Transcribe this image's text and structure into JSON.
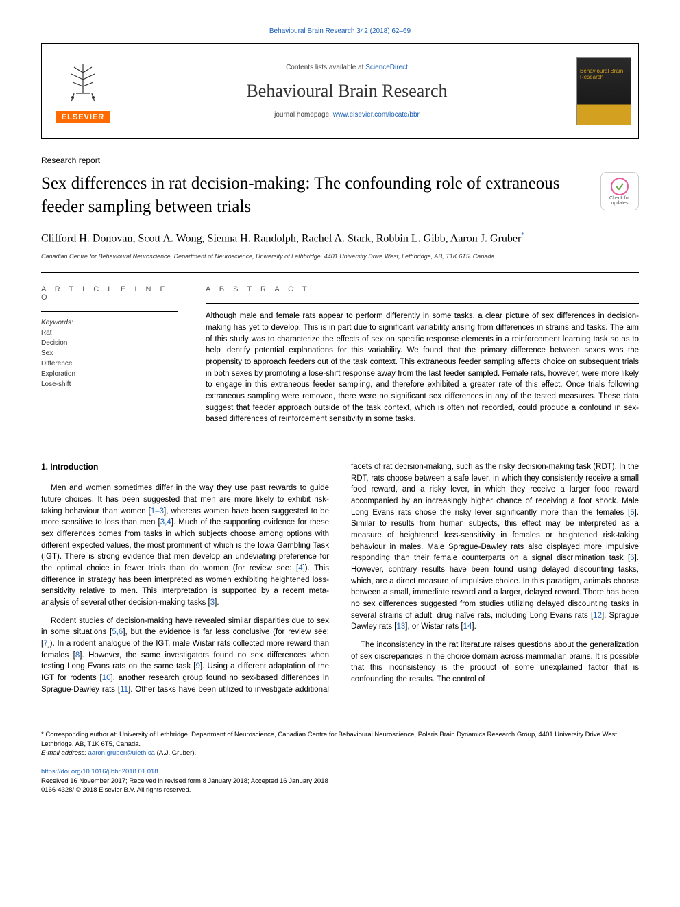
{
  "top_citation": "Behavioural Brain Research 342 (2018) 62–69",
  "header": {
    "contents_prefix": "Contents lists available at ",
    "contents_link": "ScienceDirect",
    "journal_name": "Behavioural Brain Research",
    "homepage_prefix": "journal homepage: ",
    "homepage_link": "www.elsevier.com/locate/bbr",
    "publisher_label": "ELSEVIER",
    "cover_text": "Behavioural Brain Research"
  },
  "article_type": "Research report",
  "title": "Sex differences in rat decision-making: The confounding role of extraneous feeder sampling between trials",
  "updates_badge": "Check for updates",
  "authors": "Clifford H. Donovan, Scott A. Wong, Sienna H. Randolph, Rachel A. Stark, Robbin L. Gibb, Aaron J. Gruber",
  "corresponding_mark": "*",
  "affiliation": "Canadian Centre for Behavioural Neuroscience, Department of Neuroscience, University of Lethbridge, 4401 University Drive West, Lethbridge, AB, T1K 6T5, Canada",
  "info_heading": "A R T I C L E  I N F O",
  "abstract_heading": "A B S T R A C T",
  "keywords_label": "Keywords:",
  "keywords": [
    "Rat",
    "Decision",
    "Sex",
    "Difference",
    "Exploration",
    "Lose-shift"
  ],
  "abstract": "Although male and female rats appear to perform differently in some tasks, a clear picture of sex differences in decision-making has yet to develop. This is in part due to significant variability arising from differences in strains and tasks. The aim of this study was to characterize the effects of sex on specific response elements in a reinforcement learning task so as to help identify potential explanations for this variability. We found that the primary difference between sexes was the propensity to approach feeders out of the task context. This extraneous feeder sampling affects choice on subsequent trials in both sexes by promoting a lose-shift response away from the last feeder sampled. Female rats, however, were more likely to engage in this extraneous feeder sampling, and therefore exhibited a greater rate of this effect. Once trials following extraneous sampling were removed, there were no significant sex differences in any of the tested measures. These data suggest that feeder approach outside of the task context, which is often not recorded, could produce a confound in sex-based differences of reinforcement sensitivity in some tasks.",
  "intro_heading": "1. Introduction",
  "intro_paragraphs": [
    "Men and women sometimes differ in the way they use past rewards to guide future choices. It has been suggested that men are more likely to exhibit risk-taking behaviour than women [1–3], whereas women have been suggested to be more sensitive to loss than men [3,4]. Much of the supporting evidence for these sex differences comes from tasks in which subjects choose among options with different expected values, the most prominent of which is the Iowa Gambling Task (IGT). There is strong evidence that men develop an undeviating preference for the optimal choice in fewer trials than do women (for review see: [4]). This difference in strategy has been interpreted as women exhibiting heightened loss-sensitivity relative to men. This interpretation is supported by a recent meta-analysis of several other decision-making tasks [3].",
    "Rodent studies of decision-making have revealed similar disparities due to sex in some situations [5,6], but the evidence is far less conclusive (for review see: [7]). In a rodent analogue of the IGT, male Wistar rats collected more reward than females [8]. However, the same investigators found no sex differences when testing Long Evans rats on the same task [9]. Using a different adaptation of the IGT for rodents [10], another research group found no sex-based differences in Sprague-Dawley rats [11]. Other tasks have been utilized to investigate additional facets of rat decision-making, such as the risky decision-making task (RDT). In the RDT, rats choose between a safe lever, in which they consistently receive a small food reward, and a risky lever, in which they receive a larger food reward accompanied by an increasingly higher chance of receiving a foot shock. Male Long Evans rats chose the risky lever significantly more than the females [5]. Similar to results from human subjects, this effect may be interpreted as a measure of heightened loss-sensitivity in females or heightened risk-taking behaviour in males. Male Sprague-Dawley rats also displayed more impulsive responding than their female counterparts on a signal discrimination task [6]. However, contrary results have been found using delayed discounting tasks, which, are a direct measure of impulsive choice. In this paradigm, animals choose between a small, immediate reward and a larger, delayed reward. There has been no sex differences suggested from studies utilizing delayed discounting tasks in several strains of adult, drug naïve rats, including Long Evans rats [12], Sprague Dawley rats [13], or Wistar rats [14].",
    "The inconsistency in the rat literature raises questions about the generalization of sex discrepancies in the choice domain across mammalian brains. It is possible that this inconsistency is the product of some unexplained factor that is confounding the results. The control of"
  ],
  "footer": {
    "corresponding": "* Corresponding author at: University of Lethbridge, Department of Neuroscience, Canadian Centre for Behavioural Neuroscience, Polaris Brain Dynamics Research Group, 4401 University Drive West, Lethbridge, AB, T1K 6T5, Canada.",
    "email_label": "E-mail address: ",
    "email": "aaron.gruber@uleth.ca",
    "email_suffix": " (A.J. Gruber).",
    "doi": "https://doi.org/10.1016/j.bbr.2018.01.018",
    "received": "Received 16 November 2017; Received in revised form 8 January 2018; Accepted 16 January 2018",
    "copyright": "0166-4328/ © 2018 Elsevier B.V. All rights reserved."
  },
  "colors": {
    "link": "#1a5fb4",
    "elsevier_orange": "#ff6b00",
    "text": "#000000",
    "muted": "#555555"
  },
  "typography": {
    "body_pt": 11.5,
    "title_pt": 25,
    "journal_pt": 26,
    "authors_pt": 16,
    "footer_pt": 9.5,
    "serif": "Georgia, Times New Roman, serif",
    "sans": "Arial, Helvetica, sans-serif"
  }
}
